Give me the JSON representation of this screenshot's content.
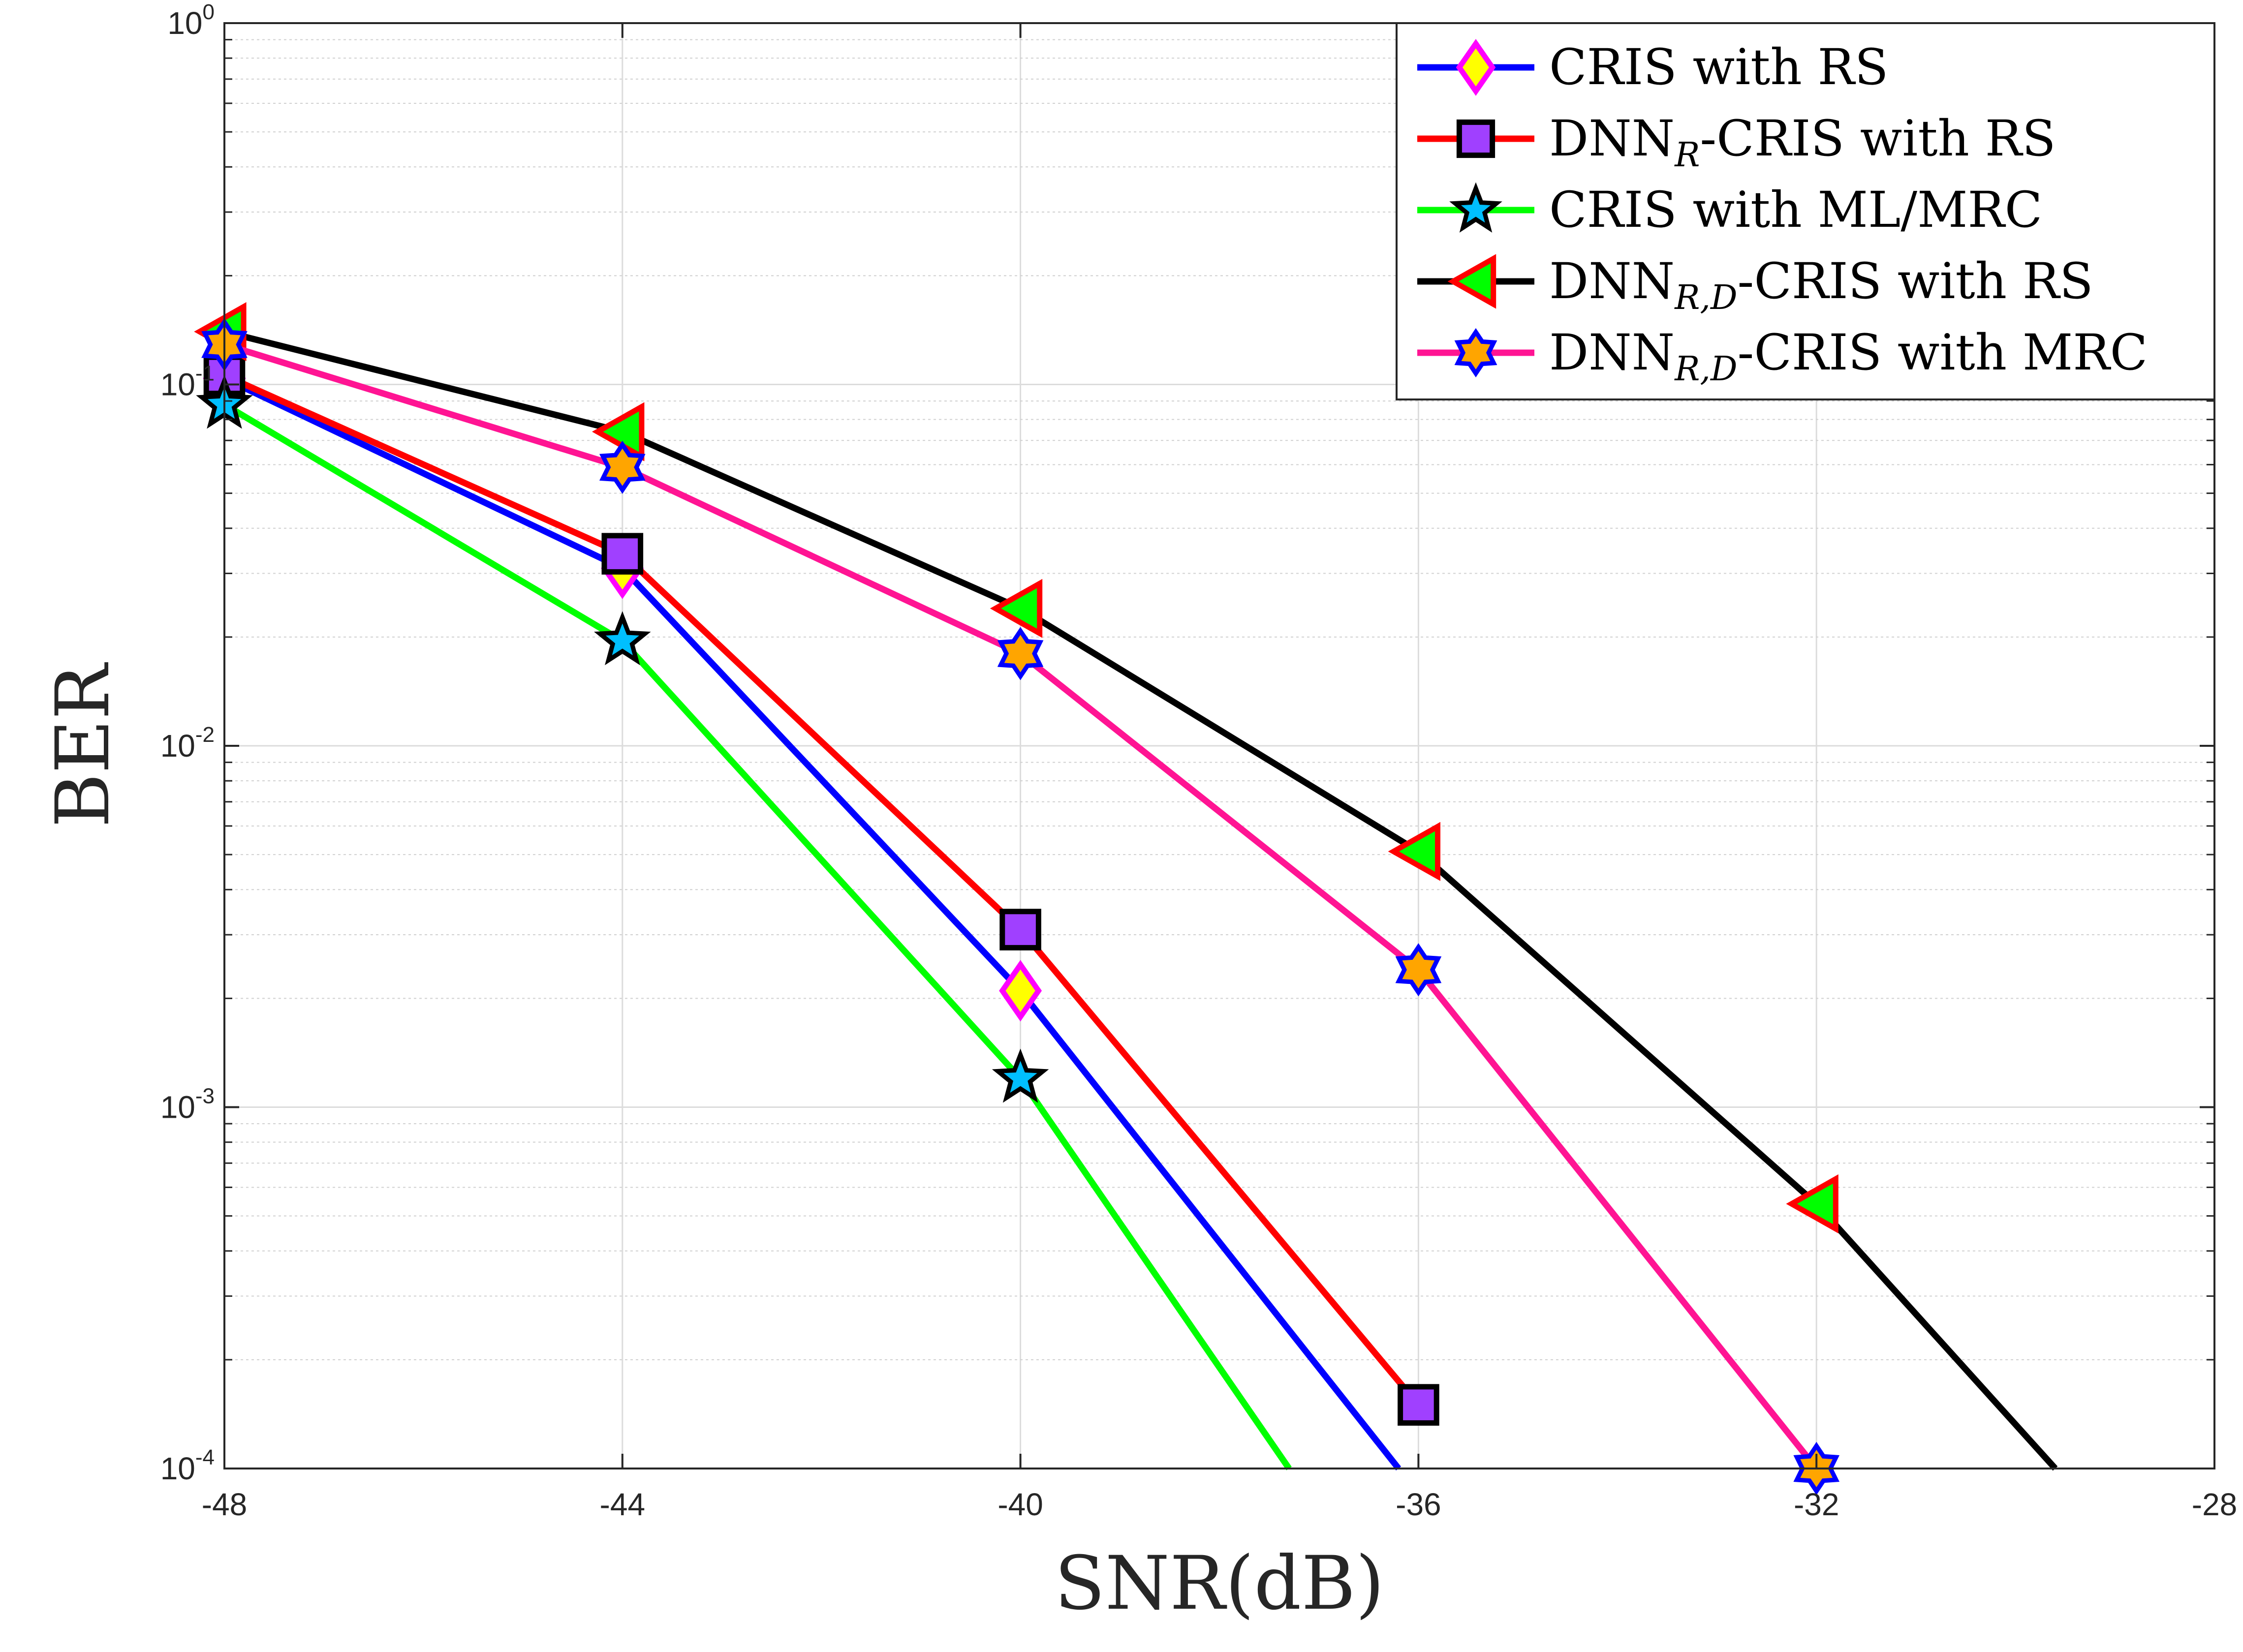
{
  "chart_data": {
    "type": "line",
    "title": "",
    "xlabel": "SNR(dB)",
    "ylabel": "BER",
    "yscale": "log",
    "xlim": [
      -48,
      -28
    ],
    "ylim": [
      0.0001,
      1
    ],
    "grid": true,
    "legend_position": "top-right",
    "xticks": [
      {
        "value": -48,
        "label": "-48"
      },
      {
        "value": -44,
        "label": "-44"
      },
      {
        "value": -40,
        "label": "-40"
      },
      {
        "value": -36,
        "label": "-36"
      },
      {
        "value": -32,
        "label": "-32"
      },
      {
        "value": -28,
        "label": "-28"
      }
    ],
    "yticks": [
      {
        "value": 1,
        "base": "10",
        "exp": "0"
      },
      {
        "value": 0.1,
        "base": "10",
        "exp": "-1"
      },
      {
        "value": 0.01,
        "base": "10",
        "exp": "-2"
      },
      {
        "value": 0.001,
        "base": "10",
        "exp": "-3"
      },
      {
        "value": 0.0001,
        "base": "10",
        "exp": "-4"
      }
    ],
    "series": [
      {
        "name": "CRIS with RS",
        "label_main": "CRIS with RS",
        "label_sub": "",
        "label_rest": "",
        "color": "#0000ff",
        "marker": "diamond",
        "marker_fill": "#ffff00",
        "marker_edge": "#ff00ff",
        "x": [
          -48,
          -44,
          -40,
          -36.2
        ],
        "y": [
          0.104,
          0.031,
          0.0021,
          0.0001
        ],
        "marker_count": 3
      },
      {
        "name": "DNN_R-CRIS with RS",
        "label_main": "DNN",
        "label_sub": "R",
        "label_rest": "-CRIS with RS",
        "color": "#ff0000",
        "marker": "square",
        "marker_fill": "#a040ff",
        "marker_edge": "#000000",
        "x": [
          -48,
          -44,
          -40,
          -36
        ],
        "y": [
          0.106,
          0.034,
          0.0031,
          0.00015
        ],
        "marker_count": 4
      },
      {
        "name": "CRIS with ML/MRC",
        "label_main": "CRIS with ML/MRC",
        "label_sub": "",
        "label_rest": "",
        "color": "#00ff00",
        "marker": "star",
        "marker_fill": "#00bfff",
        "marker_edge": "#000000",
        "x": [
          -48,
          -44,
          -40,
          -37.3
        ],
        "y": [
          0.088,
          0.0195,
          0.0012,
          0.0001
        ],
        "marker_count": 3
      },
      {
        "name": "DNN_R,D-CRIS with RS",
        "label_main": "DNN",
        "label_sub": "R,D",
        "label_rest": "-CRIS with RS",
        "color": "#000000",
        "marker": "triangle-left",
        "marker_fill": "#00ff00",
        "marker_edge": "#ff0000",
        "x": [
          -48,
          -44,
          -40,
          -36,
          -32,
          -29.6
        ],
        "y": [
          0.14,
          0.074,
          0.024,
          0.0051,
          0.00054,
          0.0001
        ],
        "marker_count": 5
      },
      {
        "name": "DNN_R,D-CRIS with MRC",
        "label_main": "DNN",
        "label_sub": "R,D",
        "label_rest": "-CRIS with MRC",
        "color": "#ff1493",
        "marker": "hexagram",
        "marker_fill": "#ffa500",
        "marker_edge": "#0000ff",
        "x": [
          -48,
          -44,
          -40,
          -36,
          -32
        ],
        "y": [
          0.129,
          0.059,
          0.018,
          0.0024,
          0.0001
        ],
        "marker_count": 5
      }
    ]
  }
}
